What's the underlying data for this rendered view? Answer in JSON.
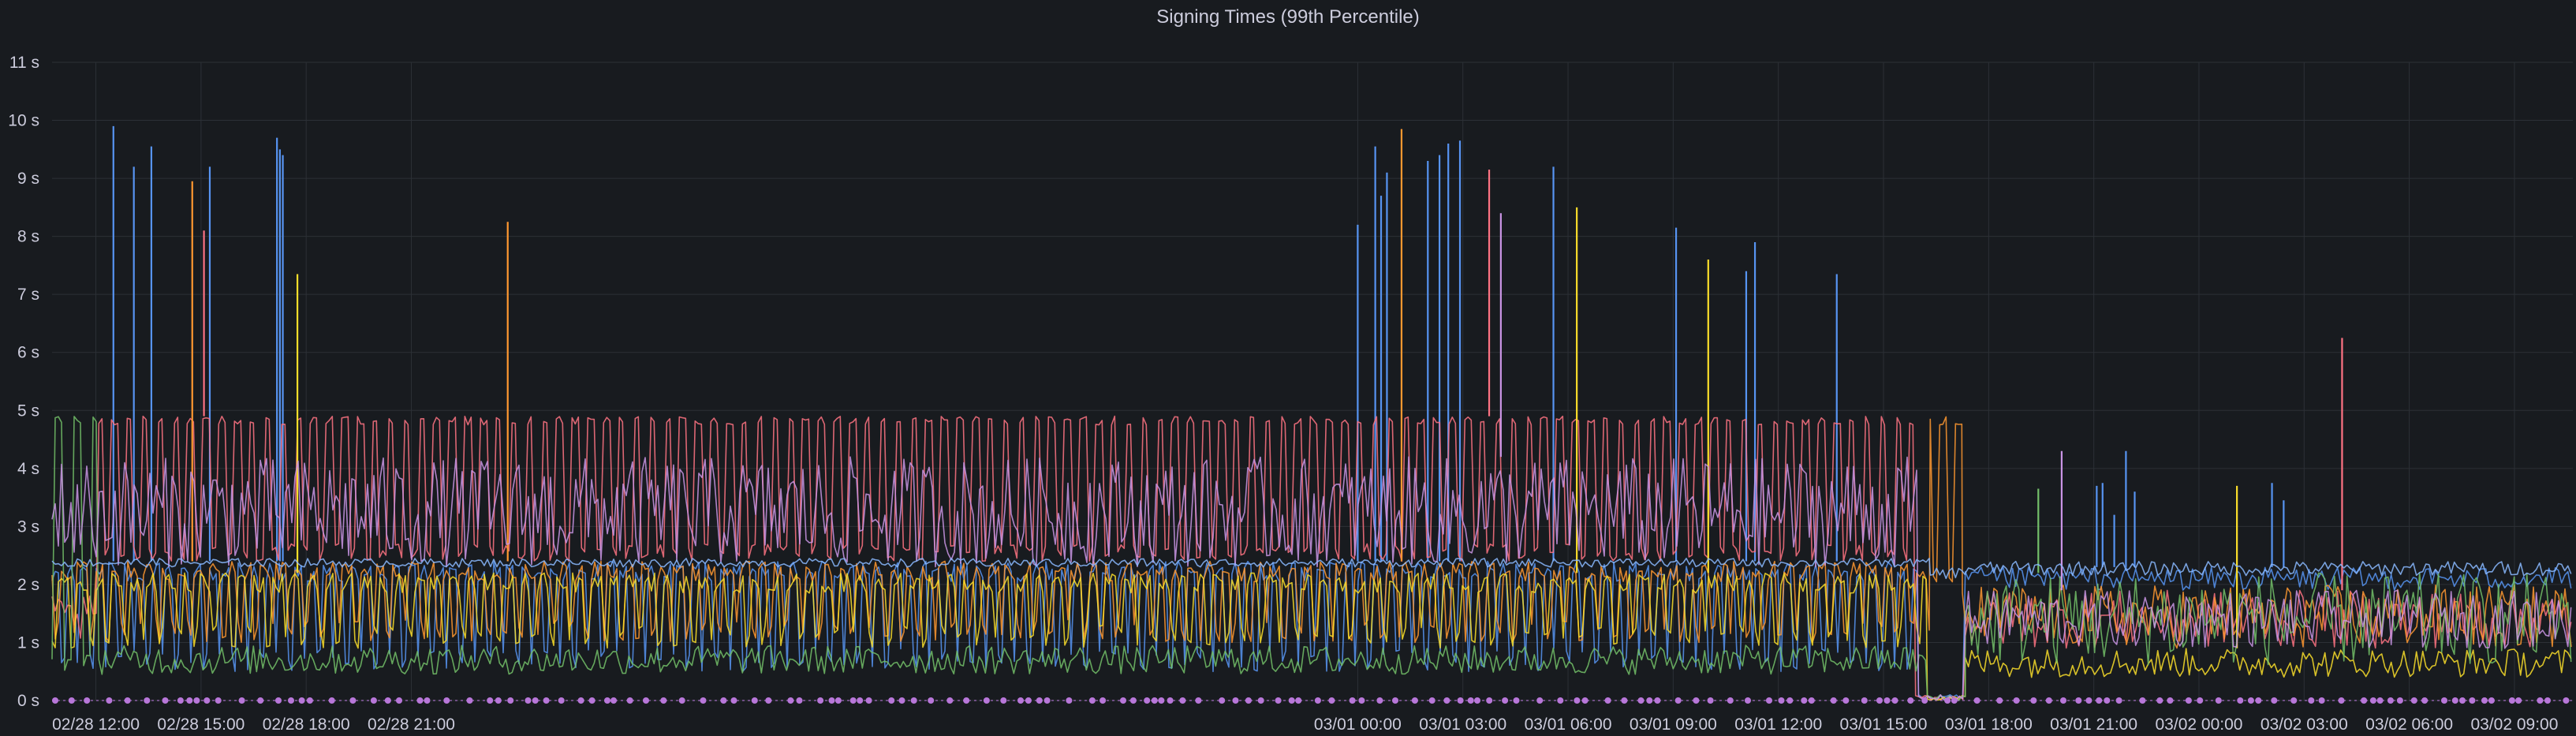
{
  "panel": {
    "title": "Signing Times (99th Percentile)"
  },
  "colors": {
    "background": "#181b1f",
    "grid": "#2c3036",
    "text": "#ccccdc",
    "annotation": "#b877d9"
  },
  "chart_data": {
    "type": "line",
    "title": "Signing Times (99th Percentile)",
    "xlabel": "",
    "ylabel": "",
    "x_range": [
      "02/28 10:45",
      "03/02 10:40"
    ],
    "ylim": [
      0,
      11
    ],
    "y_unit": "s",
    "y_ticks": [
      "0 s",
      "1 s",
      "2 s",
      "3 s",
      "4 s",
      "5 s",
      "6 s",
      "7 s",
      "8 s",
      "9 s",
      "10 s",
      "11 s"
    ],
    "x_ticks": [
      "02/28 12:00",
      "02/28 15:00",
      "02/28 18:00",
      "02/28 21:00",
      "03/01 00:00",
      "03/01 03:00",
      "03/01 06:00",
      "03/01 09:00",
      "03/01 12:00",
      "03/01 15:00",
      "03/01 18:00",
      "03/01 21:00",
      "03/02 00:00",
      "03/02 03:00",
      "03/02 06:00",
      "03/02 09:00"
    ],
    "grid": true,
    "legend": "none",
    "annotations": "purple event markers along the bottom axis",
    "series": [
      {
        "color": "#5794f2",
        "segments": [
          {
            "from": "02/28 10:45",
            "to": "03/01 16:00",
            "pattern": "sawtooth",
            "low": 0.5,
            "high": 2.4
          },
          {
            "from": "03/01 16:00",
            "to": "03/01 17:20",
            "pattern": "noise",
            "low": 0.0,
            "high": 0.1
          },
          {
            "from": "03/01 17:20",
            "to": "03/02 10:40",
            "pattern": "noise",
            "low": 1.9,
            "high": 2.3
          }
        ],
        "spikes": [
          [
            "02/28 12:30",
            9.9
          ],
          [
            "02/28 13:05",
            9.2
          ],
          [
            "02/28 13:35",
            9.55
          ],
          [
            "02/28 15:15",
            9.2
          ],
          [
            "02/28 17:10",
            9.7
          ],
          [
            "02/28 17:15",
            9.5
          ],
          [
            "02/28 17:20",
            9.4
          ],
          [
            "03/01 00:00",
            8.2
          ],
          [
            "03/01 00:30",
            9.55
          ],
          [
            "03/01 00:40",
            8.7
          ],
          [
            "03/01 00:50",
            9.1
          ],
          [
            "03/01 02:00",
            9.3
          ],
          [
            "03/01 02:20",
            9.4
          ],
          [
            "03/01 02:35",
            9.6
          ],
          [
            "03/01 02:55",
            9.65
          ],
          [
            "03/01 05:35",
            9.2
          ],
          [
            "03/01 09:05",
            8.15
          ],
          [
            "03/01 11:05",
            7.4
          ],
          [
            "03/01 11:20",
            7.9
          ],
          [
            "03/01 13:40",
            7.35
          ],
          [
            "03/01 21:05",
            3.7
          ],
          [
            "03/01 21:15",
            3.75
          ],
          [
            "03/01 21:35",
            3.2
          ],
          [
            "03/01 21:55",
            4.3
          ],
          [
            "03/01 22:10",
            3.6
          ],
          [
            "03/02 02:05",
            3.75
          ],
          [
            "03/02 02:25",
            3.45
          ]
        ]
      },
      {
        "color": "#ff7383",
        "segments": [
          {
            "from": "02/28 10:45",
            "to": "02/28 12:05",
            "pattern": "noise",
            "low": 1.0,
            "high": 1.8
          },
          {
            "from": "02/28 12:05",
            "to": "03/01 15:55",
            "pattern": "square",
            "low": 2.4,
            "high": 4.9
          },
          {
            "from": "03/01 15:55",
            "to": "03/01 17:20",
            "pattern": "noise",
            "low": 0.0,
            "high": 0.1
          },
          {
            "from": "03/01 17:20",
            "to": "03/02 10:40",
            "pattern": "noise",
            "low": 0.9,
            "high": 1.9
          }
        ],
        "spikes": [
          [
            "02/28 15:05",
            8.1
          ],
          [
            "03/01 03:45",
            9.15
          ],
          [
            "03/02 04:05",
            6.25
          ]
        ]
      },
      {
        "color": "#ff9830",
        "segments": [
          {
            "from": "02/28 10:45",
            "to": "03/01 16:20",
            "pattern": "sawtooth",
            "low": 1.0,
            "high": 2.4
          },
          {
            "from": "03/01 16:20",
            "to": "03/01 17:15",
            "pattern": "square",
            "low": 2.0,
            "high": 4.9
          },
          {
            "from": "03/01 17:15",
            "to": "03/02 10:40",
            "pattern": "noise",
            "low": 0.9,
            "high": 2.0
          }
        ],
        "spikes": [
          [
            "02/28 14:45",
            8.95
          ],
          [
            "02/28 23:45",
            8.25
          ],
          [
            "03/01 01:15",
            9.85
          ]
        ]
      },
      {
        "color": "#fade2a",
        "segments": [
          {
            "from": "02/28 10:45",
            "to": "03/01 16:15",
            "pattern": "sawtooth",
            "low": 0.9,
            "high": 2.2
          },
          {
            "from": "03/01 16:15",
            "to": "03/01 17:20",
            "pattern": "noise",
            "low": 0.0,
            "high": 0.1
          },
          {
            "from": "03/01 17:20",
            "to": "03/02 10:40",
            "pattern": "noise",
            "low": 0.4,
            "high": 0.9
          }
        ],
        "spikes": [
          [
            "02/28 17:45",
            7.35
          ],
          [
            "03/01 06:15",
            8.5
          ],
          [
            "03/01 10:00",
            7.6
          ],
          [
            "03/02 01:05",
            3.7
          ]
        ]
      },
      {
        "color": "#73bf69",
        "segments": [
          {
            "from": "02/28 10:45",
            "to": "02/28 12:05",
            "pattern": "square",
            "low": 0.5,
            "high": 4.9
          },
          {
            "from": "02/28 12:05",
            "to": "03/01 16:15",
            "pattern": "noise",
            "low": 0.45,
            "high": 0.95
          },
          {
            "from": "03/01 16:15",
            "to": "03/01 17:20",
            "pattern": "noise",
            "low": 0.0,
            "high": 0.1
          },
          {
            "from": "03/01 17:20",
            "to": "03/02 10:40",
            "pattern": "noise",
            "low": 0.6,
            "high": 2.2
          }
        ],
        "spikes": [
          [
            "03/01 19:25",
            3.65
          ]
        ]
      },
      {
        "color": "#ca95e5",
        "segments": [
          {
            "from": "02/28 10:45",
            "to": "03/01 16:00",
            "pattern": "noise",
            "low": 2.3,
            "high": 4.2
          },
          {
            "from": "03/01 16:00",
            "to": "03/01 17:20",
            "pattern": "noise",
            "low": 0.0,
            "high": 0.1
          },
          {
            "from": "03/01 17:20",
            "to": "03/02 10:40",
            "pattern": "noise",
            "low": 0.9,
            "high": 1.9
          }
        ],
        "spikes": [
          [
            "03/01 04:05",
            8.4
          ],
          [
            "03/01 20:05",
            4.3
          ]
        ]
      },
      {
        "color": "#8ab8ff",
        "segments": [
          {
            "from": "02/28 10:45",
            "to": "03/01 16:20",
            "pattern": "noise",
            "low": 2.3,
            "high": 2.45
          },
          {
            "from": "03/01 16:20",
            "to": "03/01 17:20",
            "pattern": "noise",
            "low": 2.1,
            "high": 2.3
          },
          {
            "from": "03/01 17:20",
            "to": "03/02 10:40",
            "pattern": "noise",
            "low": 2.15,
            "high": 2.4
          }
        ],
        "spikes": []
      }
    ]
  }
}
